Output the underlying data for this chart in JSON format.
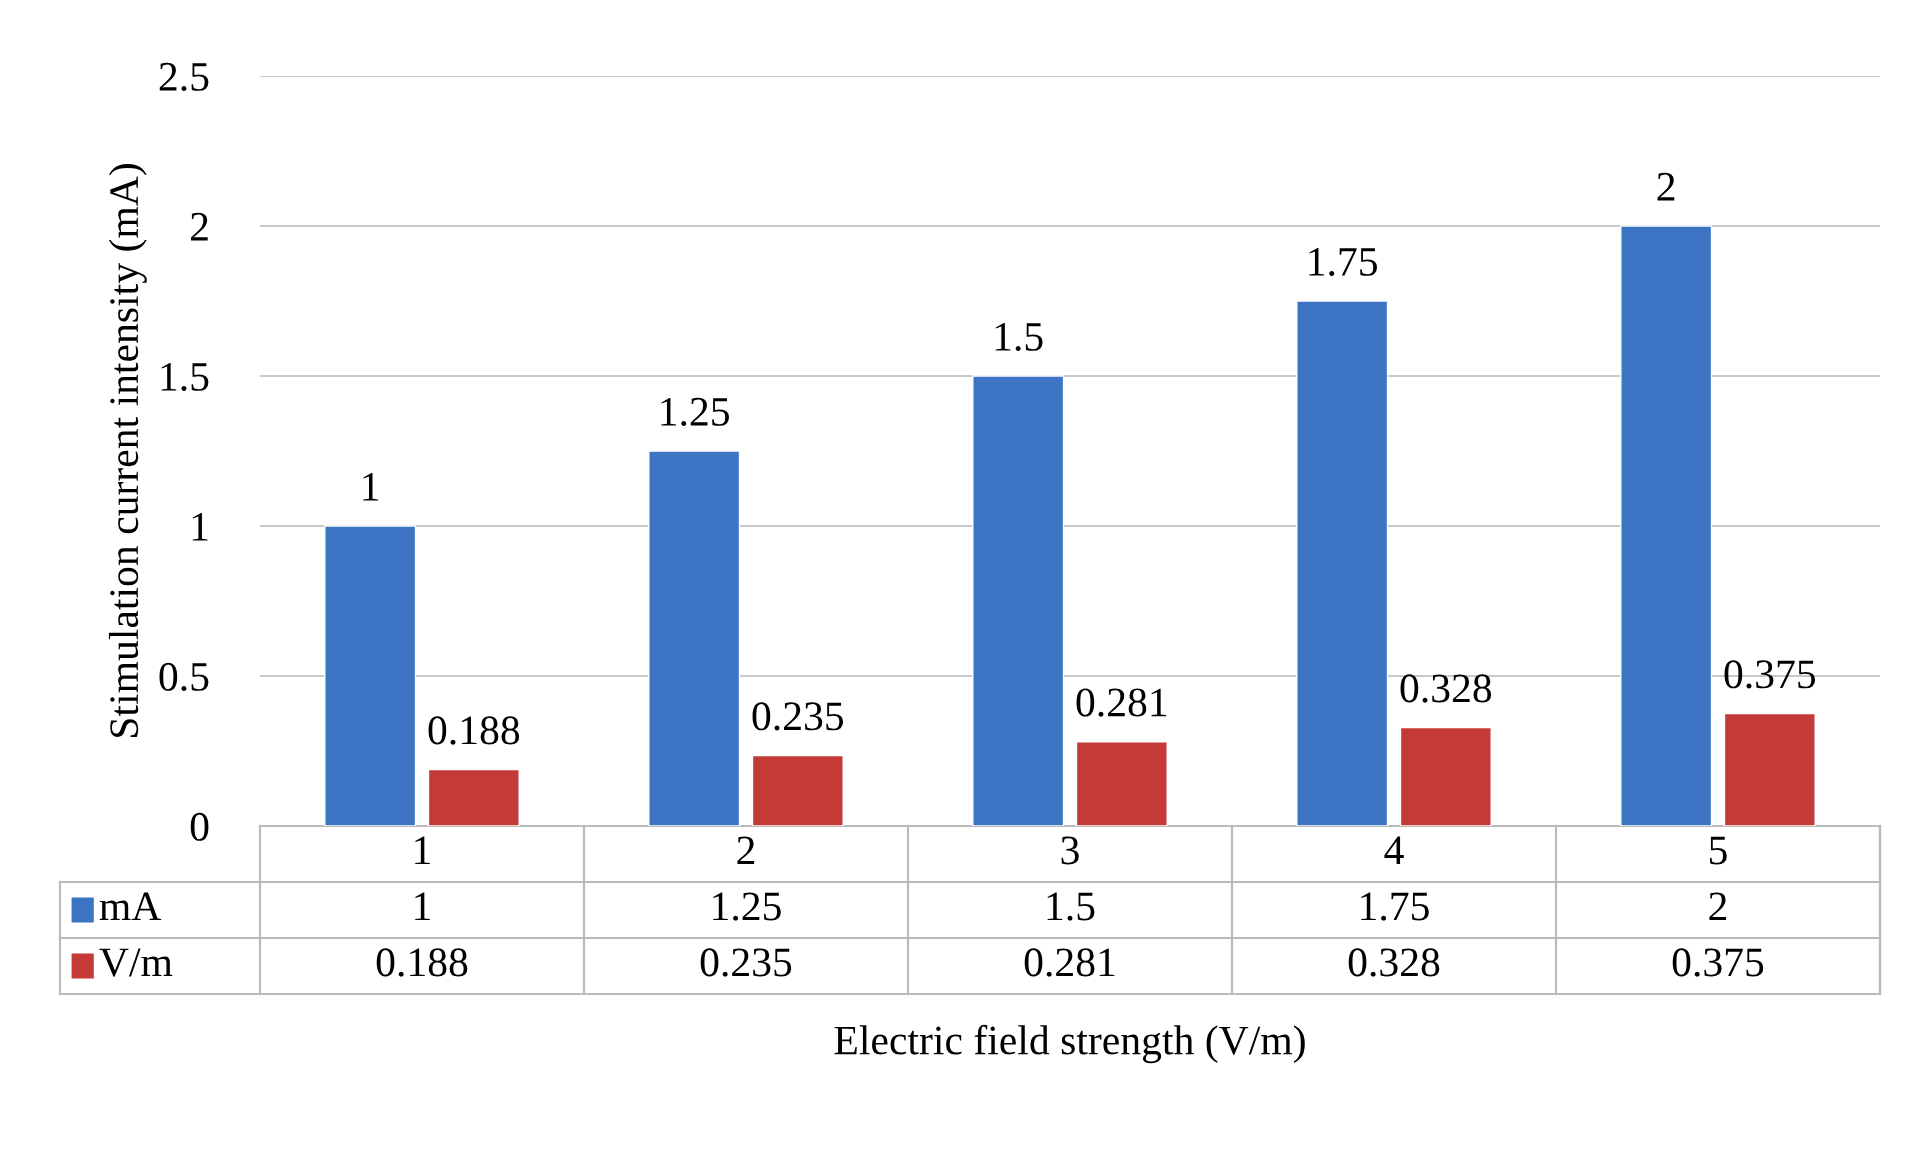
{
  "chart_data": {
    "type": "bar",
    "xlabel": "Electric field strength (V/m)",
    "ylabel": "Stimulation current intensity (mA)",
    "categories": [
      "1",
      "2",
      "3",
      "4",
      "5"
    ],
    "series": [
      {
        "name": "mA",
        "color": "#3d74c4",
        "values": [
          1,
          1.25,
          1.5,
          1.75,
          2
        ]
      },
      {
        "name": "V/m",
        "color": "#c43a36",
        "values": [
          0.188,
          0.235,
          0.281,
          0.328,
          0.375
        ]
      }
    ],
    "annotations": [
      "1",
      "1.25",
      "1.5",
      "1.75",
      "2",
      "0.188",
      "0.235",
      "0.281",
      "0.328",
      "0.375"
    ],
    "ylim": [
      0,
      2.5
    ],
    "yticks": [
      0,
      0.5,
      1,
      1.5,
      2,
      2.5
    ],
    "grid": "y",
    "data_labels": true,
    "legend": "bottom"
  }
}
